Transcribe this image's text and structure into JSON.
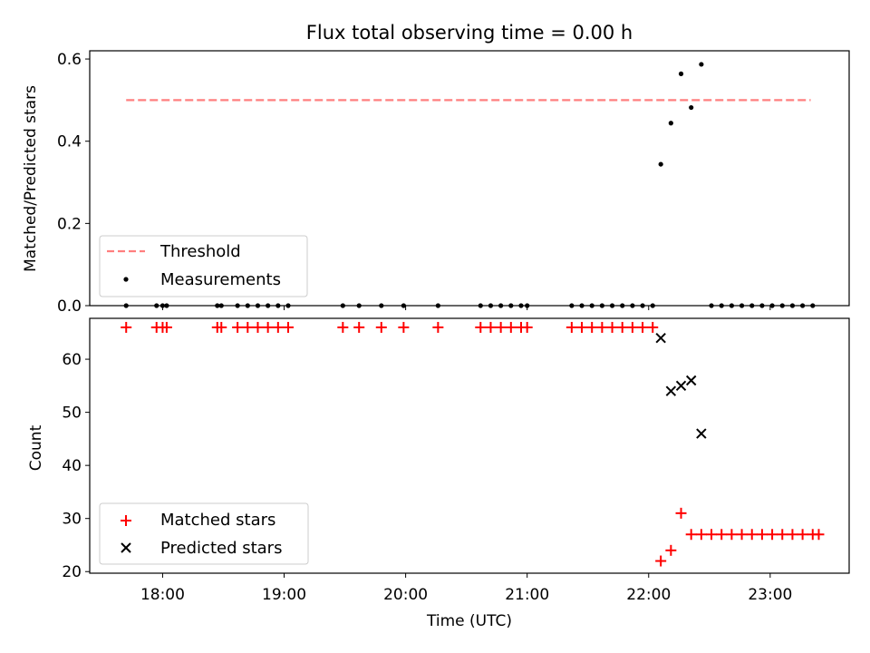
{
  "title": "Flux total observing time = 0.00 h",
  "chart_data": [
    {
      "type": "scatter",
      "panel": "top",
      "ylabel": "Matched/Predicted stars",
      "ylim": [
        0,
        0.62
      ],
      "yticks": [
        0.0,
        0.2,
        0.4,
        0.6
      ],
      "ytick_labels": [
        "0.0",
        "0.2",
        "0.4",
        "0.6"
      ],
      "threshold": {
        "name": "Threshold",
        "y": 0.5,
        "x_start": "17:42",
        "x_end": "23:20",
        "color": "#ff7f7f",
        "style": "dashed"
      },
      "series": [
        {
          "name": "Measurements",
          "color": "#000000",
          "marker": "dot",
          "points": [
            [
              "17:42",
              0.0
            ],
            [
              "17:57",
              0.0
            ],
            [
              "18:00",
              0.0
            ],
            [
              "18:02",
              0.0
            ],
            [
              "18:27",
              0.0
            ],
            [
              "18:29",
              0.0
            ],
            [
              "18:37",
              0.0
            ],
            [
              "18:42",
              0.0
            ],
            [
              "18:47",
              0.0
            ],
            [
              "18:52",
              0.0
            ],
            [
              "18:57",
              0.0
            ],
            [
              "19:02",
              0.0
            ],
            [
              "19:29",
              0.0
            ],
            [
              "19:37",
              0.0
            ],
            [
              "19:48",
              0.0
            ],
            [
              "19:59",
              0.0
            ],
            [
              "20:16",
              0.0
            ],
            [
              "20:37",
              0.0
            ],
            [
              "20:42",
              0.0
            ],
            [
              "20:47",
              0.0
            ],
            [
              "20:52",
              0.0
            ],
            [
              "20:57",
              0.0
            ],
            [
              "21:00",
              0.0
            ],
            [
              "21:22",
              0.0
            ],
            [
              "21:27",
              0.0
            ],
            [
              "21:32",
              0.0
            ],
            [
              "21:37",
              0.0
            ],
            [
              "21:42",
              0.0
            ],
            [
              "21:47",
              0.0
            ],
            [
              "21:52",
              0.0
            ],
            [
              "21:57",
              0.0
            ],
            [
              "22:02",
              0.0
            ],
            [
              "22:06",
              0.344
            ],
            [
              "22:11",
              0.444
            ],
            [
              "22:16",
              0.564
            ],
            [
              "22:21",
              0.482
            ],
            [
              "22:26",
              0.587
            ],
            [
              "22:31",
              0.0
            ],
            [
              "22:36",
              0.0
            ],
            [
              "22:41",
              0.0
            ],
            [
              "22:46",
              0.0
            ],
            [
              "22:51",
              0.0
            ],
            [
              "22:56",
              0.0
            ],
            [
              "23:01",
              0.0
            ],
            [
              "23:06",
              0.0
            ],
            [
              "23:11",
              0.0
            ],
            [
              "23:16",
              0.0
            ],
            [
              "23:21",
              0.0
            ]
          ]
        }
      ],
      "legend": {
        "placement": "lower-left",
        "entries": [
          "Threshold",
          "Measurements"
        ]
      }
    },
    {
      "type": "scatter",
      "panel": "bottom",
      "xlabel": "Time (UTC)",
      "ylabel": "Count",
      "ylim": [
        19.7,
        67.7
      ],
      "yticks": [
        20,
        30,
        40,
        50,
        60
      ],
      "ytick_labels": [
        "20",
        "30",
        "40",
        "50",
        "60"
      ],
      "xlim": [
        "17:24",
        "23:39"
      ],
      "xticks": [
        "18:00",
        "19:00",
        "20:00",
        "21:00",
        "22:00",
        "23:00"
      ],
      "series": [
        {
          "name": "Matched stars",
          "color": "#ff0000",
          "marker": "plus",
          "points": [
            [
              "17:42",
              66
            ],
            [
              "17:57",
              66
            ],
            [
              "18:00",
              66
            ],
            [
              "18:02",
              66
            ],
            [
              "18:27",
              66
            ],
            [
              "18:29",
              66
            ],
            [
              "18:37",
              66
            ],
            [
              "18:42",
              66
            ],
            [
              "18:47",
              66
            ],
            [
              "18:52",
              66
            ],
            [
              "18:57",
              66
            ],
            [
              "19:02",
              66
            ],
            [
              "19:29",
              66
            ],
            [
              "19:37",
              66
            ],
            [
              "19:48",
              66
            ],
            [
              "19:59",
              66
            ],
            [
              "20:16",
              66
            ],
            [
              "20:37",
              66
            ],
            [
              "20:42",
              66
            ],
            [
              "20:47",
              66
            ],
            [
              "20:52",
              66
            ],
            [
              "20:57",
              66
            ],
            [
              "21:00",
              66
            ],
            [
              "21:22",
              66
            ],
            [
              "21:27",
              66
            ],
            [
              "21:32",
              66
            ],
            [
              "21:37",
              66
            ],
            [
              "21:42",
              66
            ],
            [
              "21:47",
              66
            ],
            [
              "21:52",
              66
            ],
            [
              "21:57",
              66
            ],
            [
              "22:02",
              66
            ],
            [
              "22:06",
              22
            ],
            [
              "22:11",
              24
            ],
            [
              "22:16",
              31
            ],
            [
              "22:21",
              27
            ],
            [
              "22:26",
              27
            ],
            [
              "22:31",
              27
            ],
            [
              "22:36",
              27
            ],
            [
              "22:41",
              27
            ],
            [
              "22:46",
              27
            ],
            [
              "22:51",
              27
            ],
            [
              "22:56",
              27
            ],
            [
              "23:01",
              27
            ],
            [
              "23:06",
              27
            ],
            [
              "23:11",
              27
            ],
            [
              "23:16",
              27
            ],
            [
              "23:21",
              27
            ],
            [
              "23:24",
              27
            ]
          ]
        },
        {
          "name": "Predicted stars",
          "color": "#000000",
          "marker": "x",
          "points": [
            [
              "22:06",
              64
            ],
            [
              "22:11",
              54
            ],
            [
              "22:16",
              55
            ],
            [
              "22:21",
              56
            ],
            [
              "22:26",
              46
            ]
          ]
        }
      ],
      "legend": {
        "placement": "lower-left",
        "entries": [
          "Matched stars",
          "Predicted stars"
        ]
      }
    }
  ]
}
